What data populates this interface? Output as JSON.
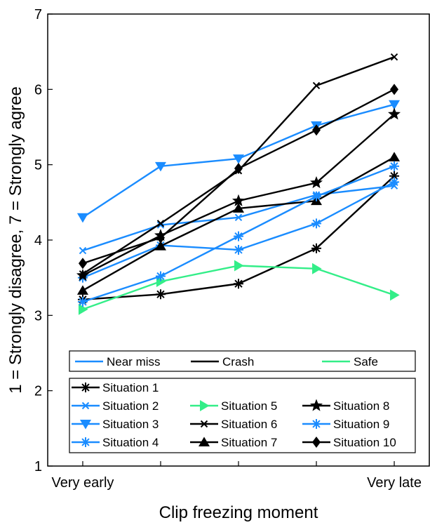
{
  "chart_data": {
    "type": "line",
    "xlabel": "Clip freezing moment",
    "ylabel": "1 = Strongly disagree, 7 = Strongly agree",
    "x": [
      1,
      2,
      3,
      4,
      5
    ],
    "x_tick_labels": [
      {
        "x": 1,
        "label": "Very early"
      },
      {
        "x": 5,
        "label": "Very late"
      }
    ],
    "xlim": [
      0.55,
      5.45
    ],
    "ylim": [
      1,
      7
    ],
    "yticks": [
      1,
      2,
      3,
      4,
      5,
      6,
      7
    ],
    "grid": false,
    "colors": {
      "near_miss": "#1a8cff",
      "crash": "#000000",
      "safe": "#33ee88"
    },
    "type_legend": [
      {
        "label": "Near miss",
        "color": "#1a8cff"
      },
      {
        "label": "Crash",
        "color": "#000000"
      },
      {
        "label": "Safe",
        "color": "#33ee88"
      }
    ],
    "series": [
      {
        "name": "Situation 1",
        "group": "crash",
        "color": "#000000",
        "marker": "asterisk",
        "values": [
          3.21,
          3.28,
          3.42,
          3.89,
          4.85
        ]
      },
      {
        "name": "Situation 2",
        "group": "near miss",
        "color": "#1a8cff",
        "marker": "x",
        "values": [
          3.86,
          4.2,
          4.3,
          4.6,
          4.72
        ]
      },
      {
        "name": "Situation 3",
        "group": "near miss",
        "color": "#1a8cff",
        "marker": "triangle-down",
        "values": [
          4.3,
          4.98,
          5.08,
          5.52,
          5.8
        ]
      },
      {
        "name": "Situation 4",
        "group": "near miss",
        "color": "#1a8cff",
        "marker": "asterisk",
        "values": [
          3.5,
          3.93,
          3.87,
          4.22,
          4.77
        ]
      },
      {
        "name": "Situation 5",
        "group": "safe",
        "color": "#33ee88",
        "marker": "triangle-right",
        "values": [
          3.08,
          3.45,
          3.66,
          3.62,
          3.27
        ]
      },
      {
        "name": "Situation 6",
        "group": "crash",
        "color": "#000000",
        "marker": "x",
        "values": [
          3.55,
          4.22,
          4.92,
          6.05,
          6.43
        ]
      },
      {
        "name": "Situation 7",
        "group": "crash",
        "color": "#000000",
        "marker": "triangle-up",
        "values": [
          3.33,
          3.92,
          4.42,
          4.52,
          5.1
        ]
      },
      {
        "name": "Situation 8",
        "group": "crash",
        "color": "#000000",
        "marker": "star",
        "values": [
          3.53,
          4.06,
          4.52,
          4.76,
          5.67
        ]
      },
      {
        "name": "Situation 9",
        "group": "near miss",
        "color": "#1a8cff",
        "marker": "asterisk",
        "values": [
          3.18,
          3.52,
          4.05,
          4.58,
          4.98
        ]
      },
      {
        "name": "Situation 10",
        "group": "crash",
        "color": "#000000",
        "marker": "diamond",
        "values": [
          3.69,
          4.03,
          4.95,
          5.46,
          6.0
        ]
      }
    ],
    "situation_legend_columns": [
      [
        "Situation 1",
        "Situation 2",
        "Situation 3",
        "Situation 4"
      ],
      [
        "Situation 5",
        "Situation 6",
        "Situation 7"
      ],
      [
        "Situation 8",
        "Situation 9",
        "Situation 10"
      ]
    ]
  }
}
